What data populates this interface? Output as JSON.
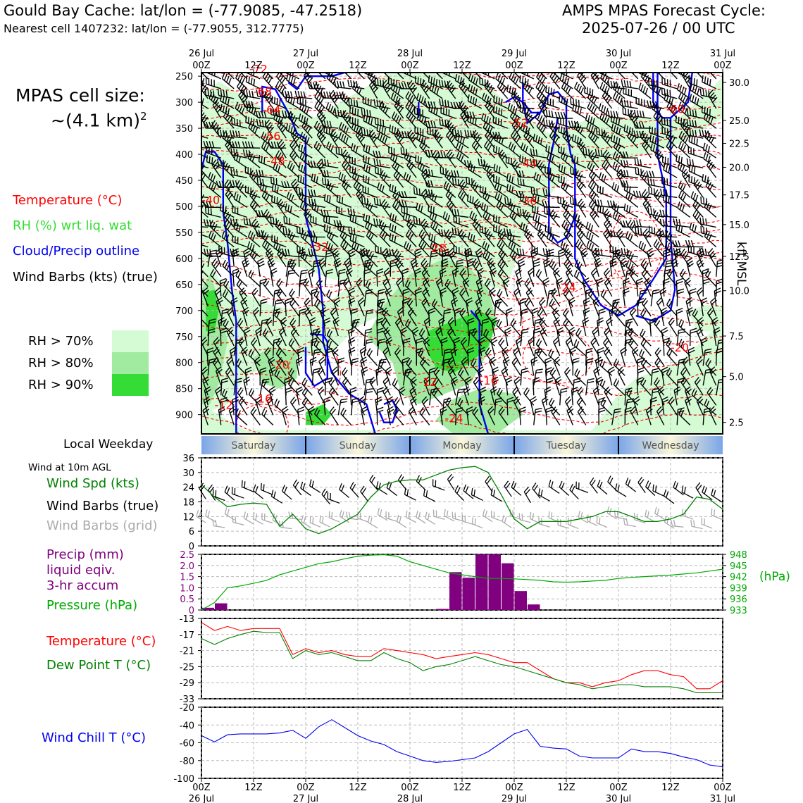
{
  "header": {
    "site_title": "Gould Bay Cache: lat/lon = (-77.9085, -47.2518)",
    "cell_line": "Nearest cell 1407232: lat/lon = (-77.9055, 312.7775)",
    "model_line1": "AMPS MPAS Forecast Cycle:",
    "model_line2": "2025-07-26 / 00 UTC"
  },
  "cell_size": {
    "line1": "MPAS cell size:",
    "line2": "~(4.1 km)",
    "sup": "2"
  },
  "legend": {
    "temperature": "Temperature (°C)",
    "rh": "RH (%) wrt liq. wat",
    "cloud": "Cloud/Precip outline",
    "wind": "Wind Barbs (kts) (true)",
    "rh70": "RH > 70%",
    "rh80": "RH > 80%",
    "rh90": "RH > 90%",
    "colors": {
      "rh70": "#d4fbd4",
      "rh80": "#a1eba1",
      "rh90": "#35dc35",
      "temp": "#ff0000",
      "cloud": "#0000ee"
    }
  },
  "time_axis": {
    "hours": [
      0,
      12,
      24,
      36,
      48,
      60,
      72,
      84,
      96,
      108,
      120
    ],
    "top_labels": [
      "00Z",
      "12Z",
      "00Z",
      "12Z",
      "00Z",
      "12Z",
      "00Z",
      "12Z",
      "00Z",
      "12Z",
      "00Z"
    ],
    "date_labels": [
      "26 Jul",
      "",
      "27 Jul",
      "",
      "28 Jul",
      "",
      "29 Jul",
      "",
      "30 Jul",
      "",
      "31 Jul"
    ]
  },
  "chart_data": [
    {
      "type": "heatmap",
      "panel": "profile",
      "ylabel_right": "kft MSL",
      "pressure_ticks": [
        250,
        300,
        350,
        400,
        450,
        500,
        550,
        600,
        650,
        700,
        750,
        800,
        850,
        900
      ],
      "height_ticks": [
        "30.0",
        "25.0",
        "22.5",
        "20.0",
        "17.5",
        "15.0",
        "12.5",
        "10.0",
        "7.5",
        "5.0",
        "2.5"
      ],
      "height_tick_pressures": [
        262,
        335,
        379,
        425,
        478,
        535,
        596,
        662,
        749,
        827,
        915
      ],
      "temperature_contour_labels": [
        {
          "text": "-68",
          "t": 12,
          "p": 287
        },
        {
          "text": "-64",
          "t": 14,
          "p": 322
        },
        {
          "text": "-56",
          "t": 14,
          "p": 373
        },
        {
          "text": "-48",
          "t": 15,
          "p": 420
        },
        {
          "text": "-40",
          "t": 0,
          "p": 495
        },
        {
          "text": "-32",
          "t": 25,
          "p": 585
        },
        {
          "text": "-28",
          "t": 52,
          "p": 588
        },
        {
          "text": "-36",
          "t": 73,
          "p": 497
        },
        {
          "text": "-44",
          "t": 73,
          "p": 425
        },
        {
          "text": "-52",
          "t": 71,
          "p": 347
        },
        {
          "text": "-60",
          "t": 107,
          "p": 321
        },
        {
          "text": "-24",
          "t": 82,
          "p": 663
        },
        {
          "text": "-20",
          "t": 16,
          "p": 812
        },
        {
          "text": "-20",
          "t": 108,
          "p": 779
        },
        {
          "text": "-12",
          "t": 3,
          "p": 889
        },
        {
          "text": "-16",
          "t": 12,
          "p": 877
        },
        {
          "text": "-12",
          "t": 50,
          "p": 845
        },
        {
          "text": "-16",
          "t": 64,
          "p": 842
        },
        {
          "text": "-24",
          "t": 56,
          "p": 915
        },
        {
          "text": "-72",
          "t": 11,
          "p": 244
        }
      ]
    },
    {
      "type": "line",
      "panel": "weekday",
      "title": "Local Weekday",
      "categories": [
        "Saturday",
        "Sunday",
        "Monday",
        "Tuesday",
        "Wednesday"
      ]
    },
    {
      "type": "line",
      "panel": "wind10m",
      "title": "Wind at 10m AGL",
      "labels": [
        "Wind Spd (kts)",
        "Wind Barbs (true)",
        "Wind Barbs (grid)"
      ],
      "ylim": [
        0,
        36
      ],
      "yticks": [
        0,
        6,
        12,
        18,
        24,
        30,
        36
      ],
      "series": [
        {
          "name": "Wind Spd (kts)",
          "color": "#008000",
          "x": [
            0,
            3,
            6,
            9,
            12,
            15,
            18,
            21,
            24,
            27,
            30,
            33,
            36,
            39,
            42,
            45,
            48,
            51,
            54,
            57,
            60,
            63,
            66,
            69,
            72,
            75,
            78,
            81,
            84,
            87,
            90,
            93,
            96,
            99,
            102,
            105,
            108,
            111,
            114,
            117,
            120
          ],
          "values": [
            25,
            20,
            16,
            17,
            17.5,
            17,
            8,
            13,
            7,
            5,
            7,
            10,
            13,
            20,
            25,
            26.5,
            27,
            27,
            29,
            31,
            32,
            32.5,
            30,
            21,
            11,
            7,
            10,
            10,
            10,
            11,
            12,
            14,
            14,
            12,
            10,
            10,
            11,
            13,
            20,
            19,
            15
          ]
        }
      ]
    },
    {
      "type": "bar",
      "panel": "precip_pressure",
      "labels": [
        "Precip (mm)",
        "liquid eqiv.",
        "3-hr accum",
        "Pressure (hPa)"
      ],
      "ylim_left": [
        0,
        2.5
      ],
      "yticks_left": [
        "2.5",
        "2.0",
        "1.5",
        "1.0",
        "0.5",
        "0"
      ],
      "ylim_right": [
        933,
        948
      ],
      "yticks_right": [
        "948",
        "945",
        "942",
        "939",
        "936",
        "933"
      ],
      "right_unit": "(hPa)",
      "precip": {
        "name": "Precip (mm)",
        "color": "#800080",
        "x": [
          0,
          3,
          54,
          57,
          60,
          63,
          66,
          69,
          72,
          75
        ],
        "values": [
          0.1,
          0.3,
          0.05,
          1.7,
          1.45,
          2.5,
          2.5,
          2.1,
          0.85,
          0.25
        ]
      },
      "pressure": {
        "name": "Pressure (hPa)",
        "color": "#00aa00",
        "x": [
          0,
          3,
          6,
          9,
          12,
          15,
          18,
          21,
          24,
          27,
          30,
          33,
          36,
          39,
          42,
          45,
          48,
          51,
          54,
          57,
          60,
          63,
          66,
          69,
          72,
          75,
          78,
          81,
          84,
          87,
          90,
          93,
          96,
          99,
          102,
          105,
          108,
          111,
          114,
          117,
          120
        ],
        "values": [
          933,
          935,
          939,
          939.5,
          940.2,
          941,
          942.5,
          943.5,
          944.5,
          945.5,
          946,
          946.8,
          947.5,
          947.8,
          947.9,
          947.5,
          946,
          945,
          944,
          943,
          942.5,
          942,
          941.5,
          941.5,
          941.4,
          941.2,
          941,
          940.6,
          940.5,
          940.6,
          940.8,
          941,
          941.5,
          941.8,
          942,
          942.2,
          942.4,
          942.7,
          943,
          943.5,
          944
        ]
      }
    },
    {
      "type": "line",
      "panel": "temperature",
      "ylim": [
        -33,
        -13
      ],
      "yticks": [
        "-13",
        "-17",
        "-21",
        "-25",
        "-29",
        "-33"
      ],
      "series": [
        {
          "name": "Temperature (°C)",
          "color": "#ff0000",
          "x": [
            0,
            3,
            6,
            9,
            12,
            15,
            18,
            21,
            24,
            27,
            30,
            33,
            36,
            39,
            42,
            45,
            48,
            51,
            54,
            57,
            60,
            63,
            66,
            69,
            72,
            75,
            78,
            81,
            84,
            87,
            90,
            93,
            96,
            99,
            102,
            105,
            108,
            111,
            114,
            117,
            120
          ],
          "values": [
            -14,
            -16,
            -15,
            -16,
            -15.5,
            -15.5,
            -15.5,
            -22,
            -20.5,
            -21.5,
            -21,
            -22,
            -22.5,
            -22.5,
            -20.5,
            -21,
            -21.5,
            -22,
            -23,
            -22.5,
            -22,
            -21.5,
            -22,
            -23,
            -24,
            -24,
            -26,
            -28,
            -29,
            -29,
            -30,
            -29,
            -28.5,
            -27,
            -26,
            -26,
            -27,
            -27.5,
            -30.5,
            -30.5,
            -28.5
          ]
        },
        {
          "name": "Dew Point T (°C)",
          "color": "#008000",
          "x": [
            0,
            3,
            6,
            9,
            12,
            15,
            18,
            21,
            24,
            27,
            30,
            33,
            36,
            39,
            42,
            45,
            48,
            51,
            54,
            57,
            60,
            63,
            66,
            69,
            72,
            75,
            78,
            81,
            84,
            87,
            90,
            93,
            96,
            99,
            102,
            105,
            108,
            111,
            114,
            117,
            120
          ],
          "values": [
            -18,
            -19.5,
            -18,
            -17,
            -16.2,
            -16.5,
            -16.5,
            -23,
            -21,
            -22,
            -21.5,
            -22.5,
            -23.5,
            -23.5,
            -21.5,
            -23,
            -24,
            -26,
            -25,
            -24.5,
            -23.5,
            -22.5,
            -23.5,
            -24.5,
            -25,
            -26,
            -27,
            -28,
            -29,
            -29.5,
            -30.5,
            -30,
            -29.5,
            -29.5,
            -30,
            -30,
            -30,
            -30.5,
            -31.5,
            -31.5,
            -31.5
          ]
        }
      ]
    },
    {
      "type": "line",
      "panel": "windchill",
      "ylim": [
        -100,
        -20
      ],
      "yticks": [
        "-20",
        "-40",
        "-60",
        "-80",
        "-100"
      ],
      "series": [
        {
          "name": "Wind Chill T (°C)",
          "color": "#0000ee",
          "x": [
            0,
            3,
            6,
            9,
            12,
            15,
            18,
            21,
            24,
            27,
            30,
            33,
            36,
            39,
            42,
            45,
            48,
            51,
            54,
            57,
            60,
            63,
            66,
            69,
            72,
            75,
            78,
            81,
            84,
            87,
            90,
            93,
            96,
            99,
            102,
            105,
            108,
            111,
            114,
            117,
            120
          ],
          "values": [
            -52,
            -59,
            -51,
            -50,
            -50,
            -50,
            -49,
            -46,
            -55,
            -42,
            -34,
            -43,
            -52,
            -58,
            -62,
            -70,
            -75,
            -80,
            -82,
            -81,
            -79,
            -77,
            -70,
            -60,
            -50,
            -45,
            -64,
            -66,
            -67,
            -75,
            -77,
            -77,
            -77,
            -67,
            -70,
            -70,
            -72,
            -76,
            -79,
            -85,
            -87
          ]
        }
      ]
    }
  ]
}
